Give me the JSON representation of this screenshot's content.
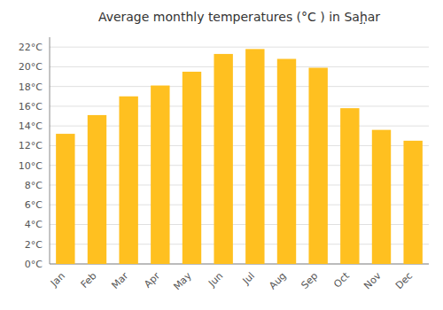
{
  "chart_data": {
    "type": "bar",
    "title": "Average monthly temperatures (°C ) in Saḩ̣ar",
    "categories": [
      "Jan",
      "Feb",
      "Mar",
      "Apr",
      "May",
      "Jun",
      "Jul",
      "Aug",
      "Sep",
      "Oct",
      "Nov",
      "Dec"
    ],
    "values": [
      13.2,
      15.1,
      17.0,
      18.1,
      19.5,
      21.3,
      21.8,
      20.8,
      19.9,
      15.8,
      13.6,
      12.5
    ],
    "color": "#FFC020",
    "ylim": [
      0,
      23
    ],
    "yticks": [
      {
        "value": 0,
        "label": "0°C"
      },
      {
        "value": 2,
        "label": "2°C"
      },
      {
        "value": 4,
        "label": "4°C"
      },
      {
        "value": 6,
        "label": "6°C"
      },
      {
        "value": 8,
        "label": "8°C"
      },
      {
        "value": 10,
        "label": "10°C"
      },
      {
        "value": 12,
        "label": "12°C"
      },
      {
        "value": 14,
        "label": "14°C"
      },
      {
        "value": 16,
        "label": "16°C"
      },
      {
        "value": 18,
        "label": "18°C"
      },
      {
        "value": 20,
        "label": "20°C"
      },
      {
        "value": 22,
        "label": "22°C"
      }
    ],
    "grid": true
  }
}
